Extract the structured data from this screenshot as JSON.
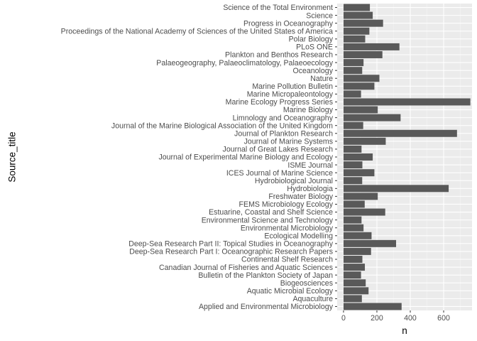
{
  "chart_data": {
    "type": "bar",
    "orientation": "horizontal",
    "xlabel": "n",
    "ylabel": "Source_title",
    "xlim": [
      0,
      770
    ],
    "x_ticks": [
      0,
      200,
      400,
      600
    ],
    "grid": true,
    "colors": {
      "bar": "#595959",
      "panel": "#ebebeb",
      "grid_major": "#ffffff",
      "text": "#4d4d4d"
    },
    "categories": [
      "Applied and Environmental Microbiology",
      "Aquaculture",
      "Aquatic Microbial Ecology",
      "Biogeosciences",
      "Bulletin of the Plankton Society of Japan",
      "Canadian Journal of Fisheries and Aquatic Sciences",
      "Continental Shelf Research",
      "Deep-Sea Research Part I: Oceanographic Research Papers",
      "Deep-Sea Research Part II: Topical Studies in Oceanography",
      "Ecological Modelling",
      "Environmental Microbiology",
      "Environmental Science and Technology",
      "Estuarine, Coastal and Shelf Science",
      "FEMS Microbiology Ecology",
      "Freshwater Biology",
      "Hydrobiologia",
      "Hydrobiological Journal",
      "ICES Journal of Marine Science",
      "ISME Journal",
      "Journal of Experimental Marine Biology and Ecology",
      "Journal of Great Lakes Research",
      "Journal of Marine Systems",
      "Journal of Plankton Research",
      "Journal of the Marine Biological Association of the United Kingdom",
      "Limnology and Oceanography",
      "Marine Biology",
      "Marine Ecology Progress Series",
      "Marine Micropaleontology",
      "Marine Pollution Bulletin",
      "Nature",
      "Oceanology",
      "Palaeogeography, Palaeoclimatology, Palaeoecology",
      "Plankton and Benthos Research",
      "PLoS ONE",
      "Polar Biology",
      "Proceedings of the National Academy of Sciences of the United States of America",
      "Progress in Oceanography",
      "Science",
      "Science of the Total Environment"
    ],
    "values": [
      348,
      110,
      150,
      133,
      105,
      128,
      113,
      165,
      315,
      168,
      120,
      108,
      250,
      127,
      205,
      630,
      112,
      185,
      113,
      175,
      108,
      253,
      680,
      118,
      342,
      205,
      760,
      105,
      185,
      215,
      112,
      120,
      233,
      335,
      130,
      155,
      237,
      175,
      158
    ]
  }
}
